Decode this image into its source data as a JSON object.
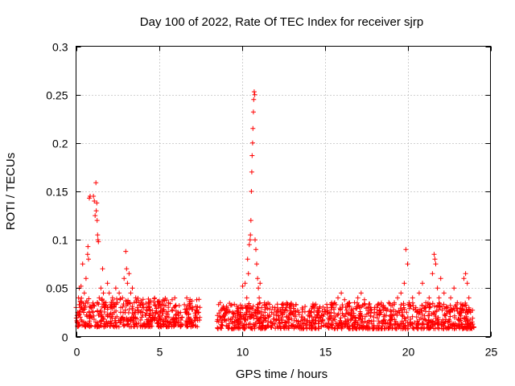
{
  "chart_data": {
    "type": "scatter",
    "title": "Day 100 of 2022, Rate Of TEC Index for receiver sjrp",
    "xlabel": "GPS time / hours",
    "ylabel": "ROTI / TECUs",
    "xlim": [
      0,
      25
    ],
    "ylim": [
      0,
      0.3
    ],
    "xticks": [
      0,
      5,
      10,
      15,
      20,
      25
    ],
    "xtick_labels": [
      "0",
      "5",
      "10",
      "15",
      "20",
      "25"
    ],
    "yticks": [
      0,
      0.05,
      0.1,
      0.15,
      0.2,
      0.25,
      0.3
    ],
    "ytick_labels": [
      "0",
      "0.05",
      "0.1",
      "0.15",
      "0.2",
      "0.25",
      "0.3"
    ],
    "grid": true,
    "marker": "+",
    "color": "#ff0000",
    "series": [
      {
        "name": "ROTI",
        "points": [
          [
            0.0,
            0.03
          ],
          [
            0.1,
            0.025
          ],
          [
            0.15,
            0.04
          ],
          [
            0.2,
            0.05
          ],
          [
            0.25,
            0.02
          ],
          [
            0.3,
            0.052
          ],
          [
            0.35,
            0.035
          ],
          [
            0.4,
            0.075
          ],
          [
            0.45,
            0.028
          ],
          [
            0.5,
            0.045
          ],
          [
            0.6,
            0.06
          ],
          [
            0.65,
            0.022
          ],
          [
            0.7,
            0.085
          ],
          [
            0.72,
            0.093
          ],
          [
            0.75,
            0.08
          ],
          [
            0.8,
            0.143
          ],
          [
            0.85,
            0.145
          ],
          [
            0.9,
            0.03
          ],
          [
            0.95,
            0.02
          ],
          [
            1.0,
            0.025
          ],
          [
            1.05,
            0.145
          ],
          [
            1.1,
            0.14
          ],
          [
            1.15,
            0.125
          ],
          [
            1.2,
            0.159
          ],
          [
            1.22,
            0.13
          ],
          [
            1.25,
            0.138
          ],
          [
            1.27,
            0.12
          ],
          [
            1.3,
            0.105
          ],
          [
            1.32,
            0.1
          ],
          [
            1.35,
            0.098
          ],
          [
            1.4,
            0.04
          ],
          [
            1.5,
            0.05
          ],
          [
            1.6,
            0.07
          ],
          [
            1.65,
            0.045
          ],
          [
            1.7,
            0.03
          ],
          [
            1.8,
            0.035
          ],
          [
            1.9,
            0.055
          ],
          [
            2.0,
            0.045
          ],
          [
            2.1,
            0.03
          ],
          [
            2.2,
            0.04
          ],
          [
            2.3,
            0.025
          ],
          [
            2.4,
            0.05
          ],
          [
            2.5,
            0.035
          ],
          [
            2.6,
            0.045
          ],
          [
            2.7,
            0.03
          ],
          [
            2.8,
            0.04
          ],
          [
            2.9,
            0.06
          ],
          [
            3.0,
            0.088
          ],
          [
            3.05,
            0.07
          ],
          [
            3.1,
            0.055
          ],
          [
            3.2,
            0.065
          ],
          [
            3.3,
            0.045
          ],
          [
            3.4,
            0.05
          ],
          [
            3.5,
            0.035
          ],
          [
            3.6,
            0.04
          ],
          [
            3.7,
            0.03
          ],
          [
            3.8,
            0.035
          ],
          [
            3.9,
            0.025
          ],
          [
            4.0,
            0.03
          ],
          [
            4.2,
            0.022
          ],
          [
            4.4,
            0.028
          ],
          [
            4.6,
            0.02
          ],
          [
            4.8,
            0.025
          ],
          [
            5.0,
            0.018
          ],
          [
            5.2,
            0.022
          ],
          [
            5.4,
            0.015
          ],
          [
            5.6,
            0.02
          ],
          [
            5.8,
            0.018
          ],
          [
            6.0,
            0.022
          ],
          [
            6.2,
            0.015
          ],
          [
            6.4,
            0.02
          ],
          [
            6.6,
            0.025
          ],
          [
            6.8,
            0.018
          ],
          [
            7.0,
            0.028
          ],
          [
            7.2,
            0.022
          ],
          [
            7.4,
            0.025
          ],
          [
            8.6,
            0.033
          ],
          [
            8.7,
            0.035
          ],
          [
            8.8,
            0.028
          ],
          [
            9.0,
            0.022
          ],
          [
            9.2,
            0.018
          ],
          [
            9.4,
            0.015
          ],
          [
            9.6,
            0.02
          ],
          [
            9.8,
            0.025
          ],
          [
            10.0,
            0.03
          ],
          [
            10.05,
            0.052
          ],
          [
            10.2,
            0.055
          ],
          [
            10.3,
            0.04
          ],
          [
            10.35,
            0.08
          ],
          [
            10.4,
            0.065
          ],
          [
            10.45,
            0.095
          ],
          [
            10.5,
            0.1
          ],
          [
            10.52,
            0.105
          ],
          [
            10.55,
            0.12
          ],
          [
            10.58,
            0.15
          ],
          [
            10.6,
            0.17
          ],
          [
            10.62,
            0.187
          ],
          [
            10.65,
            0.2
          ],
          [
            10.67,
            0.215
          ],
          [
            10.7,
            0.232
          ],
          [
            10.72,
            0.245
          ],
          [
            10.75,
            0.253
          ],
          [
            10.78,
            0.25
          ],
          [
            10.8,
            0.1
          ],
          [
            10.85,
            0.09
          ],
          [
            10.9,
            0.075
          ],
          [
            10.95,
            0.06
          ],
          [
            11.0,
            0.05
          ],
          [
            11.05,
            0.04
          ],
          [
            11.1,
            0.055
          ],
          [
            11.2,
            0.03
          ],
          [
            11.4,
            0.025
          ],
          [
            11.6,
            0.02
          ],
          [
            11.8,
            0.025
          ],
          [
            12.0,
            0.03
          ],
          [
            12.2,
            0.022
          ],
          [
            12.4,
            0.018
          ],
          [
            12.6,
            0.015
          ],
          [
            12.8,
            0.02
          ],
          [
            13.0,
            0.018
          ],
          [
            13.2,
            0.022
          ],
          [
            13.4,
            0.015
          ],
          [
            13.6,
            0.02
          ],
          [
            13.8,
            0.018
          ],
          [
            14.0,
            0.022
          ],
          [
            14.2,
            0.025
          ],
          [
            14.4,
            0.02
          ],
          [
            14.6,
            0.025
          ],
          [
            14.8,
            0.022
          ],
          [
            15.0,
            0.028
          ],
          [
            15.2,
            0.025
          ],
          [
            15.4,
            0.03
          ],
          [
            15.6,
            0.035
          ],
          [
            15.8,
            0.04
          ],
          [
            16.0,
            0.045
          ],
          [
            16.2,
            0.038
          ],
          [
            16.4,
            0.032
          ],
          [
            16.6,
            0.028
          ],
          [
            16.8,
            0.035
          ],
          [
            17.0,
            0.04
          ],
          [
            17.2,
            0.045
          ],
          [
            17.4,
            0.038
          ],
          [
            17.6,
            0.03
          ],
          [
            17.8,
            0.025
          ],
          [
            18.0,
            0.028
          ],
          [
            18.2,
            0.032
          ],
          [
            18.4,
            0.025
          ],
          [
            18.6,
            0.03
          ],
          [
            18.8,
            0.028
          ],
          [
            19.0,
            0.032
          ],
          [
            19.2,
            0.035
          ],
          [
            19.4,
            0.04
          ],
          [
            19.6,
            0.045
          ],
          [
            19.8,
            0.055
          ],
          [
            19.9,
            0.09
          ],
          [
            20.0,
            0.075
          ],
          [
            20.1,
            0.035
          ],
          [
            20.3,
            0.04
          ],
          [
            20.5,
            0.03
          ],
          [
            20.7,
            0.045
          ],
          [
            20.9,
            0.055
          ],
          [
            21.1,
            0.035
          ],
          [
            21.3,
            0.04
          ],
          [
            21.5,
            0.065
          ],
          [
            21.6,
            0.085
          ],
          [
            21.65,
            0.08
          ],
          [
            21.7,
            0.075
          ],
          [
            21.8,
            0.05
          ],
          [
            21.9,
            0.04
          ],
          [
            22.0,
            0.06
          ],
          [
            22.2,
            0.045
          ],
          [
            22.4,
            0.03
          ],
          [
            22.6,
            0.04
          ],
          [
            22.8,
            0.05
          ],
          [
            23.0,
            0.035
          ],
          [
            23.2,
            0.025
          ],
          [
            23.4,
            0.06
          ],
          [
            23.5,
            0.065
          ],
          [
            23.6,
            0.055
          ],
          [
            23.7,
            0.04
          ],
          [
            23.8,
            0.025
          ],
          [
            23.9,
            0.015
          ],
          [
            24.0,
            0.01
          ]
        ]
      }
    ],
    "dense_band": {
      "segments": [
        {
          "x": [
            0.0,
            7.5
          ],
          "low": 0.01,
          "high": 0.04
        },
        {
          "x": [
            8.5,
            24.0
          ],
          "low": 0.008,
          "high": 0.035
        }
      ],
      "density_per_hour": 70
    }
  }
}
